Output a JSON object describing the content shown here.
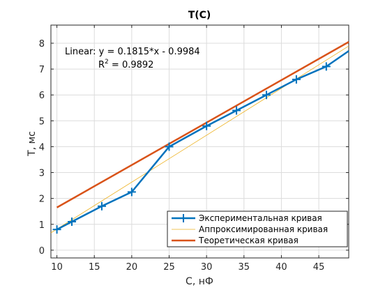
{
  "chart_data": {
    "type": "line",
    "title": "T(C)",
    "xlabel": "С, нФ",
    "ylabel": "T, мс",
    "xlim": [
      9.2,
      49
    ],
    "ylim": [
      -0.3,
      8.7
    ],
    "xticks": [
      10,
      15,
      20,
      25,
      30,
      35,
      40,
      45
    ],
    "yticks": [
      0,
      1,
      2,
      3,
      4,
      5,
      6,
      7,
      8
    ],
    "grid": true,
    "legend_position": "bottom-right",
    "series": [
      {
        "name": "Экспериментальная кривая",
        "color": "#0072BD",
        "marker": "plus",
        "x": [
          10,
          12,
          16,
          20,
          25,
          30,
          34,
          38,
          42,
          46,
          49
        ],
        "y": [
          0.8,
          1.1,
          1.7,
          2.25,
          4.0,
          4.8,
          5.4,
          6.0,
          6.6,
          7.1,
          7.7
        ],
        "marker_count": 10
      },
      {
        "name": "Аппроксимированная кривая",
        "color": "#EDB120",
        "marker": "none",
        "x": [
          9.2,
          49
        ],
        "y": [
          0.67,
          7.89
        ]
      },
      {
        "name": "Теоретическая кривая",
        "color": "#D95319",
        "marker": "none",
        "x": [
          10,
          49
        ],
        "y": [
          1.65,
          8.05
        ]
      }
    ],
    "annotation": {
      "line1": "Linear:  y = 0.1815*x - 0.9984",
      "r2_prefix": "R",
      "r2_exp": "2",
      "r2_suffix": " = 0.9892"
    }
  }
}
